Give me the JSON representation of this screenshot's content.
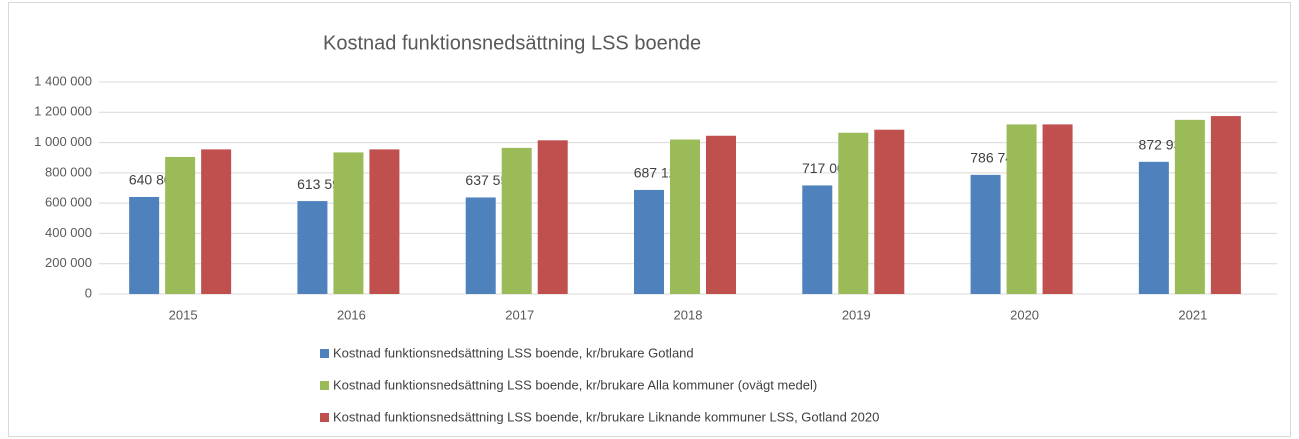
{
  "chart_data": {
    "type": "bar",
    "title": "Kostnad funktionsnedsättning LSS boende",
    "categories": [
      "2015",
      "2016",
      "2017",
      "2018",
      "2019",
      "2020",
      "2021"
    ],
    "series": [
      {
        "name": "Kostnad funktionsnedsättning LSS boende, kr/brukare Gotland",
        "color": "#4f81bd",
        "values": [
          640808,
          613598,
          637559,
          687129,
          717005,
          786740,
          872934
        ],
        "value_labels": [
          "640 808",
          "613 598",
          "637 559",
          "687 129",
          "717 005",
          "786 740",
          "872 934"
        ]
      },
      {
        "name": "Kostnad funktionsnedsättning LSS boende, kr/brukare Alla kommuner (ovägt medel)",
        "color": "#9bbb59",
        "values": [
          905000,
          935000,
          965000,
          1020000,
          1065000,
          1120000,
          1150000
        ]
      },
      {
        "name": "Kostnad funktionsnedsättning LSS boende, kr/brukare Liknande kommuner LSS, Gotland 2020",
        "color": "#c0504d",
        "values": [
          955000,
          955000,
          1015000,
          1045000,
          1085000,
          1120000,
          1175000
        ]
      }
    ],
    "ylim": [
      0,
      1400000
    ],
    "yticks": [
      0,
      {
        "value": 200000,
        "label": "200 000"
      },
      {
        "value": 400000,
        "label": "400 000"
      },
      {
        "value": 600000,
        "label": "600 000"
      },
      {
        "value": 800000,
        "label": "800 000"
      },
      {
        "value": 1000000,
        "label": "1 000 000"
      },
      {
        "value": 1200000,
        "label": "1 200 000"
      },
      {
        "value": 1400000,
        "label": "1 400 000"
      }
    ],
    "grid": true,
    "legend": "bottom"
  }
}
